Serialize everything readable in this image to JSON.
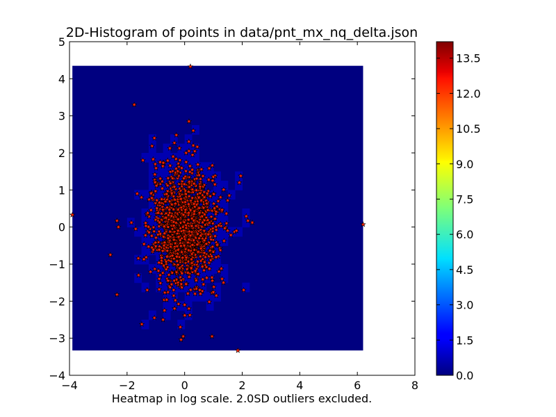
{
  "chart_data": {
    "type": "heatmap",
    "title": "2D-Histogram of points in data/pnt_mx_nq_delta.json",
    "xlabel": "Heatmap in log scale. 2.0SD outliers excluded.",
    "ylabel": "",
    "xlim": [
      -4,
      8
    ],
    "ylim": [
      -4,
      5
    ],
    "x_ticks": [
      "−4",
      "−2",
      "0",
      "2",
      "4",
      "6",
      "8"
    ],
    "y_ticks": [
      "−4",
      "−3",
      "−2",
      "−1",
      "0",
      "1",
      "2",
      "3",
      "4",
      "5"
    ],
    "heatmap_extent": {
      "x": [
        -3.9,
        6.2
      ],
      "y": [
        -3.33,
        4.35
      ]
    },
    "heatmap_background_value": 0.0,
    "hot_cells_value": 1.5,
    "colorbar": {
      "min": 0.0,
      "max": 14.2,
      "ticks": [
        "0.0",
        "1.5",
        "3.0",
        "4.5",
        "6.0",
        "7.5",
        "9.0",
        "10.5",
        "12.0",
        "13.5"
      ],
      "colormap": "jet"
    },
    "scatter": {
      "marker": "star",
      "color": "#ff2200",
      "edge_color": "#000000",
      "distribution": {
        "center": [
          0.0,
          0.0
        ],
        "std": [
          0.55,
          0.75
        ],
        "n_core": 1400
      },
      "outlier_points": [
        [
          0.2,
          4.33
        ],
        [
          -1.75,
          3.3
        ],
        [
          0.15,
          2.85
        ],
        [
          0.3,
          2.6
        ],
        [
          -1.05,
          2.4
        ],
        [
          -1.45,
          1.8
        ],
        [
          -3.9,
          0.33
        ],
        [
          6.2,
          0.07
        ],
        [
          -2.35,
          0.17
        ],
        [
          -2.3,
          0.0
        ],
        [
          -2.58,
          -0.75
        ],
        [
          2.35,
          0.12
        ],
        [
          2.2,
          0.17
        ],
        [
          1.95,
          1.38
        ],
        [
          1.9,
          1.2
        ],
        [
          -1.65,
          0.9
        ],
        [
          -1.3,
          -1.7
        ],
        [
          -1.05,
          -2.45
        ],
        [
          -0.7,
          -2.25
        ],
        [
          -0.35,
          -2.2
        ],
        [
          0.15,
          -2.2
        ],
        [
          -0.15,
          -2.7
        ],
        [
          -0.05,
          -2.95
        ],
        [
          0.95,
          -2.95
        ],
        [
          1.85,
          -3.33
        ],
        [
          2.05,
          -1.7
        ],
        [
          1.1,
          -1.85
        ],
        [
          0.55,
          -1.8
        ],
        [
          -1.6,
          -1.3
        ],
        [
          -0.85,
          -1.3
        ],
        [
          1.3,
          -1.4
        ],
        [
          1.35,
          -1.5
        ],
        [
          -1.5,
          0.8
        ],
        [
          -0.85,
          1.75
        ],
        [
          -0.4,
          1.9
        ],
        [
          0.05,
          2.0
        ],
        [
          0.15,
          2.05
        ],
        [
          1.05,
          1.15
        ],
        [
          1.55,
          0.85
        ],
        [
          -1.85,
          0.12
        ],
        [
          -1.7,
          -0.05
        ],
        [
          1.8,
          -0.1
        ],
        [
          -0.75,
          -2.5
        ],
        [
          0.0,
          -2.1
        ],
        [
          0.3,
          2.2
        ]
      ]
    }
  }
}
